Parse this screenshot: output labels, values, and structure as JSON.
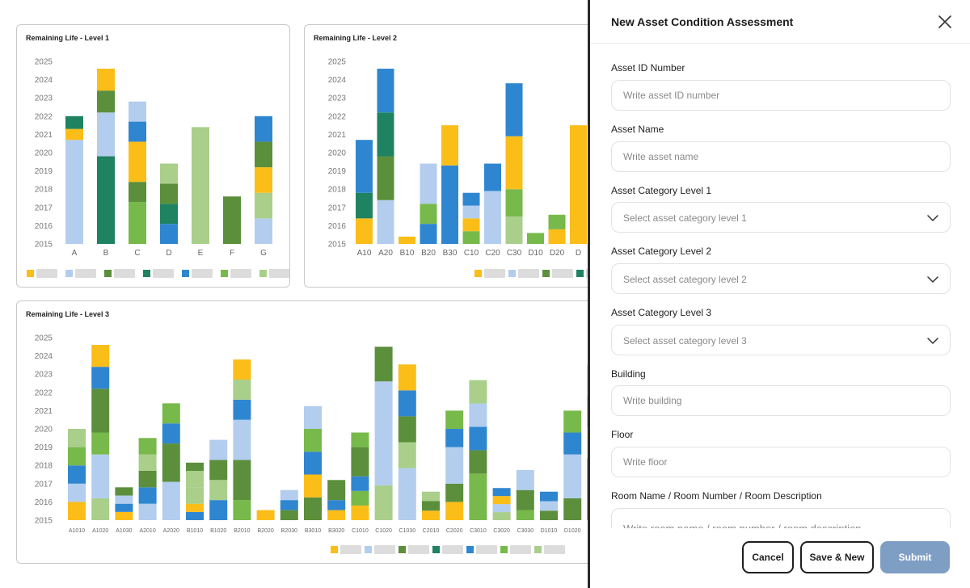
{
  "charts": [
    {
      "title": "Remaining Life - Level 1"
    },
    {
      "title": "Remaining Life - Level 2"
    },
    {
      "title": "Remaining Life - Level 3"
    }
  ],
  "chart_data": [
    {
      "type": "bar",
      "stacked": true,
      "title": "Remaining Life - Level 1",
      "yticks": [
        "2015",
        "2016",
        "2017",
        "2018",
        "2019",
        "2020",
        "2021",
        "2022",
        "2023",
        "2024",
        "2025"
      ],
      "ylim": [
        0,
        10
      ],
      "categories": [
        "A",
        "B",
        "C",
        "D",
        "E",
        "F",
        "G"
      ],
      "legend_colors": [
        "#fbbd18",
        "#b3cdee",
        "#5b8f3b",
        "#1f8260",
        "#2f86d0",
        "#77b94a",
        "#a9cf8b"
      ],
      "stacks": [
        [
          {
            "c": "#b3cdee",
            "v": 5.7
          },
          {
            "c": "#fbbd18",
            "v": 0.6
          },
          {
            "c": "#1f8260",
            "v": 0.7
          }
        ],
        [
          {
            "c": "#1f8260",
            "v": 4.8
          },
          {
            "c": "#b3cdee",
            "v": 2.4
          },
          {
            "c": "#5b8f3b",
            "v": 1.2
          },
          {
            "c": "#fbbd18",
            "v": 1.2
          }
        ],
        [
          {
            "c": "#77b94a",
            "v": 2.3
          },
          {
            "c": "#5b8f3b",
            "v": 1.1
          },
          {
            "c": "#fbbd18",
            "v": 2.2
          },
          {
            "c": "#2f86d0",
            "v": 1.1
          },
          {
            "c": "#b3cdee",
            "v": 1.1
          }
        ],
        [
          {
            "c": "#2f86d0",
            "v": 1.1
          },
          {
            "c": "#1f8260",
            "v": 1.1
          },
          {
            "c": "#5b8f3b",
            "v": 1.1
          },
          {
            "c": "#a9cf8b",
            "v": 1.1
          }
        ],
        [
          {
            "c": "#a9cf8b",
            "v": 6.4
          }
        ],
        [
          {
            "c": "#5b8f3b",
            "v": 2.6
          }
        ],
        [
          {
            "c": "#b3cdee",
            "v": 1.4
          },
          {
            "c": "#a9cf8b",
            "v": 1.4
          },
          {
            "c": "#fbbd18",
            "v": 1.4
          },
          {
            "c": "#5b8f3b",
            "v": 1.4
          },
          {
            "c": "#2f86d0",
            "v": 1.4
          }
        ]
      ]
    },
    {
      "type": "bar",
      "stacked": true,
      "title": "Remaining Life - Level 2",
      "yticks": [
        "2015",
        "2016",
        "2017",
        "2018",
        "2019",
        "2020",
        "2021",
        "2022",
        "2023",
        "2024",
        "2025"
      ],
      "ylim": [
        0,
        10
      ],
      "categories": [
        "A10",
        "A20",
        "B10",
        "B20",
        "B30",
        "C10",
        "C20",
        "C30",
        "D10",
        "D20",
        "D"
      ],
      "legend_colors": [
        "#fbbd18",
        "#b3cdee",
        "#5b8f3b",
        "#1f8260"
      ],
      "stacks": [
        [
          {
            "c": "#fbbd18",
            "v": 1.4
          },
          {
            "c": "#1f8260",
            "v": 1.4
          },
          {
            "c": "#2f86d0",
            "v": 2.9
          }
        ],
        [
          {
            "c": "#b3cdee",
            "v": 2.4
          },
          {
            "c": "#5b8f3b",
            "v": 2.4
          },
          {
            "c": "#1f8260",
            "v": 2.4
          },
          {
            "c": "#2f86d0",
            "v": 2.4
          }
        ],
        [
          {
            "c": "#fbbd18",
            "v": 0.4
          }
        ],
        [
          {
            "c": "#2f86d0",
            "v": 1.1
          },
          {
            "c": "#77b94a",
            "v": 1.1
          },
          {
            "c": "#b3cdee",
            "v": 2.2
          }
        ],
        [
          {
            "c": "#2f86d0",
            "v": 4.3
          },
          {
            "c": "#fbbd18",
            "v": 2.2
          }
        ],
        [
          {
            "c": "#77b94a",
            "v": 0.7
          },
          {
            "c": "#fbbd18",
            "v": 0.7
          },
          {
            "c": "#b3cdee",
            "v": 0.7
          },
          {
            "c": "#2f86d0",
            "v": 0.7
          }
        ],
        [
          {
            "c": "#b3cdee",
            "v": 2.9
          },
          {
            "c": "#2f86d0",
            "v": 1.5
          }
        ],
        [
          {
            "c": "#a9cf8b",
            "v": 1.5
          },
          {
            "c": "#77b94a",
            "v": 1.5
          },
          {
            "c": "#fbbd18",
            "v": 2.9
          },
          {
            "c": "#2f86d0",
            "v": 2.9
          }
        ],
        [
          {
            "c": "#77b94a",
            "v": 0.6
          }
        ],
        [
          {
            "c": "#fbbd18",
            "v": 0.8
          },
          {
            "c": "#77b94a",
            "v": 0.8
          }
        ],
        [
          {
            "c": "#fbbd18",
            "v": 6.5
          }
        ]
      ]
    },
    {
      "type": "bar",
      "stacked": true,
      "title": "Remaining Life - Level 3",
      "yticks": [
        "2015",
        "2016",
        "2017",
        "2018",
        "2019",
        "2020",
        "2021",
        "2022",
        "2023",
        "2024",
        "2025"
      ],
      "ylim": [
        0,
        10
      ],
      "categories": [
        "A1010",
        "A1020",
        "A1030",
        "A2010",
        "A2020",
        "B1010",
        "B1020",
        "B2010",
        "B2020",
        "B2030",
        "B3010",
        "B3020",
        "C1010",
        "C1020",
        "C1030",
        "C2010",
        "C2020",
        "C3010",
        "C3020",
        "C3030",
        "D1010",
        "D1020",
        "D1030"
      ],
      "legend_colors": [
        "#fbbd18",
        "#b3cdee",
        "#5b8f3b",
        "#1f8260",
        "#2f86d0",
        "#77b94a",
        "#a9cf8b"
      ],
      "stacks": [
        [
          {
            "c": "#fbbd18",
            "v": 1
          },
          {
            "c": "#b3cdee",
            "v": 1
          },
          {
            "c": "#2f86d0",
            "v": 1
          },
          {
            "c": "#77b94a",
            "v": 1
          },
          {
            "c": "#a9cf8b",
            "v": 1
          }
        ],
        [
          {
            "c": "#a9cf8b",
            "v": 1.2
          },
          {
            "c": "#b3cdee",
            "v": 2.4
          },
          {
            "c": "#77b94a",
            "v": 1.2
          },
          {
            "c": "#5b8f3b",
            "v": 2.4
          },
          {
            "c": "#2f86d0",
            "v": 1.2
          },
          {
            "c": "#fbbd18",
            "v": 1.2
          }
        ],
        [
          {
            "c": "#fbbd18",
            "v": 0.45
          },
          {
            "c": "#2f86d0",
            "v": 0.45
          },
          {
            "c": "#b3cdee",
            "v": 0.45
          },
          {
            "c": "#5b8f3b",
            "v": 0.45
          }
        ],
        [
          {
            "c": "#b3cdee",
            "v": 0.9
          },
          {
            "c": "#2f86d0",
            "v": 0.9
          },
          {
            "c": "#5b8f3b",
            "v": 0.9
          },
          {
            "c": "#a9cf8b",
            "v": 0.9
          },
          {
            "c": "#77b94a",
            "v": 0.9
          }
        ],
        [
          {
            "c": "#b3cdee",
            "v": 2.1
          },
          {
            "c": "#5b8f3b",
            "v": 2.1
          },
          {
            "c": "#2f86d0",
            "v": 1.1
          },
          {
            "c": "#77b94a",
            "v": 1.1
          }
        ],
        [
          {
            "c": "#2f86d0",
            "v": 0.45
          },
          {
            "c": "#fbbd18",
            "v": 0.45
          },
          {
            "c": "#a9cf8b",
            "v": 0.9
          },
          {
            "c": "#a9cf8b",
            "v": 0.9
          },
          {
            "c": "#5b8f3b",
            "v": 0.45
          }
        ],
        [
          {
            "c": "#2f86d0",
            "v": 1.1
          },
          {
            "c": "#a9cf8b",
            "v": 1.1
          },
          {
            "c": "#5b8f3b",
            "v": 1.1
          },
          {
            "c": "#b3cdee",
            "v": 1.1
          }
        ],
        [
          {
            "c": "#77b94a",
            "v": 1.1
          },
          {
            "c": "#5b8f3b",
            "v": 2.2
          },
          {
            "c": "#b3cdee",
            "v": 2.2
          },
          {
            "c": "#2f86d0",
            "v": 1.1
          },
          {
            "c": "#a9cf8b",
            "v": 1.1
          },
          {
            "c": "#fbbd18",
            "v": 1.1
          }
        ],
        [
          {
            "c": "#fbbd18",
            "v": 0.55
          }
        ],
        [
          {
            "c": "#5b8f3b",
            "v": 0.55
          },
          {
            "c": "#2f86d0",
            "v": 0.55
          },
          {
            "c": "#b3cdee",
            "v": 0.55
          }
        ],
        [
          {
            "c": "#5b8f3b",
            "v": 1.25
          },
          {
            "c": "#fbbd18",
            "v": 1.25
          },
          {
            "c": "#2f86d0",
            "v": 1.25
          },
          {
            "c": "#77b94a",
            "v": 1.25
          },
          {
            "c": "#b3cdee",
            "v": 1.25
          }
        ],
        [
          {
            "c": "#fbbd18",
            "v": 0.55
          },
          {
            "c": "#2f86d0",
            "v": 0.55
          },
          {
            "c": "#5b8f3b",
            "v": 1.1
          }
        ],
        [
          {
            "c": "#fbbd18",
            "v": 0.8
          },
          {
            "c": "#77b94a",
            "v": 0.8
          },
          {
            "c": "#2f86d0",
            "v": 0.8
          },
          {
            "c": "#5b8f3b",
            "v": 1.6
          },
          {
            "c": "#77b94a",
            "v": 0.8
          }
        ],
        [
          {
            "c": "#a9cf8b",
            "v": 1.9
          },
          {
            "c": "#b3cdee",
            "v": 5.7
          },
          {
            "c": "#5b8f3b",
            "v": 1.9
          }
        ],
        [
          {
            "c": "#b3cdee",
            "v": 2.85
          },
          {
            "c": "#a9cf8b",
            "v": 1.42
          },
          {
            "c": "#5b8f3b",
            "v": 1.42
          },
          {
            "c": "#2f86d0",
            "v": 1.42
          },
          {
            "c": "#fbbd18",
            "v": 1.42
          }
        ],
        [
          {
            "c": "#fbbd18",
            "v": 0.52
          },
          {
            "c": "#5b8f3b",
            "v": 0.52
          },
          {
            "c": "#a9cf8b",
            "v": 0.52
          }
        ],
        [
          {
            "c": "#fbbd18",
            "v": 1
          },
          {
            "c": "#5b8f3b",
            "v": 1
          },
          {
            "c": "#b3cdee",
            "v": 2
          },
          {
            "c": "#2f86d0",
            "v": 1
          },
          {
            "c": "#77b94a",
            "v": 1
          }
        ],
        [
          {
            "c": "#77b94a",
            "v": 2.55
          },
          {
            "c": "#5b8f3b",
            "v": 1.28
          },
          {
            "c": "#2f86d0",
            "v": 1.28
          },
          {
            "c": "#b3cdee",
            "v": 1.28
          },
          {
            "c": "#a9cf8b",
            "v": 1.28
          }
        ],
        [
          {
            "c": "#a9cf8b",
            "v": 0.44
          },
          {
            "c": "#b3cdee",
            "v": 0.44
          },
          {
            "c": "#fbbd18",
            "v": 0.44
          },
          {
            "c": "#2f86d0",
            "v": 0.44
          }
        ],
        [
          {
            "c": "#77b94a",
            "v": 0.55
          },
          {
            "c": "#5b8f3b",
            "v": 1.1
          },
          {
            "c": "#b3cdee",
            "v": 1.1
          }
        ],
        [
          {
            "c": "#5b8f3b",
            "v": 0.52
          },
          {
            "c": "#b3cdee",
            "v": 0.52
          },
          {
            "c": "#2f86d0",
            "v": 0.52
          }
        ],
        [
          {
            "c": "#5b8f3b",
            "v": 1.2
          },
          {
            "c": "#b3cdee",
            "v": 2.4
          },
          {
            "c": "#2f86d0",
            "v": 1.2
          },
          {
            "c": "#77b94a",
            "v": 1.2
          }
        ],
        [
          {
            "c": "#2f86d0",
            "v": 1.7
          },
          {
            "c": "#5b8f3b",
            "v": 1.7
          },
          {
            "c": "#b3cdee",
            "v": 1.7
          },
          {
            "c": "#77b94a",
            "v": 1.7
          },
          {
            "c": "#a9cf8b",
            "v": 1.7
          }
        ]
      ]
    }
  ],
  "drawer": {
    "title": "New Asset Condition Assessment",
    "fields": {
      "asset_id": {
        "label": "Asset ID Number",
        "placeholder": "Write asset ID number"
      },
      "asset_name": {
        "label": "Asset Name",
        "placeholder": "Write asset name"
      },
      "cat1": {
        "label": "Asset Category Level 1",
        "placeholder": "Select asset category level 1"
      },
      "cat2": {
        "label": "Asset Category Level 2",
        "placeholder": "Select asset category level 2"
      },
      "cat3": {
        "label": "Asset Category Level 3",
        "placeholder": "Select asset category level 3"
      },
      "building": {
        "label": "Building",
        "placeholder": "Write building"
      },
      "floor": {
        "label": "Floor",
        "placeholder": "Write floor"
      },
      "room": {
        "label": "Room Name / Room Number / Room Description",
        "placeholder": "Write room name / room number / room description"
      }
    },
    "buttons": {
      "cancel": "Cancel",
      "save_new": "Save & New",
      "submit": "Submit"
    }
  }
}
